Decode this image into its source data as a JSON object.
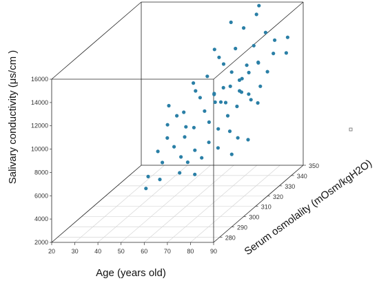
{
  "chart_data": {
    "type": "scatter3d",
    "x_label": "Age (years old)",
    "y_label": "Serum osmolality (mOsm/kgH2O)",
    "z_label": "Salivary conductivity (μs/cm )",
    "x_ticks": [
      "20",
      "30",
      "40",
      "50",
      "60",
      "70",
      "80",
      "90"
    ],
    "y_ticks": [
      "280",
      "290",
      "300",
      "310",
      "320",
      "330",
      "340",
      "350"
    ],
    "z_ticks": [
      "2000",
      "4000",
      "6000",
      "8000",
      "10000",
      "12000",
      "14000",
      "16000"
    ],
    "x_range": [
      20,
      90
    ],
    "y_range": [
      275,
      350
    ],
    "z_range": [
      2000,
      16000
    ],
    "grid": true,
    "point_color": "#2a7fa6",
    "points": [
      [
        53,
        290,
        5300
      ],
      [
        58,
        292,
        5900
      ],
      [
        55,
        288,
        6500
      ],
      [
        65,
        295,
        6200
      ],
      [
        70,
        298,
        5800
      ],
      [
        52,
        310,
        9000
      ],
      [
        55,
        312,
        9600
      ],
      [
        50,
        315,
        10200
      ],
      [
        58,
        312,
        9900
      ],
      [
        62,
        305,
        8400
      ],
      [
        60,
        318,
        11200
      ],
      [
        63,
        322,
        12100
      ],
      [
        67,
        320,
        10800
      ],
      [
        72,
        325,
        12200
      ],
      [
        75,
        318,
        11600
      ],
      [
        70,
        315,
        10500
      ],
      [
        78,
        322,
        11900
      ],
      [
        80,
        316,
        12300
      ],
      [
        82,
        320,
        12600
      ],
      [
        84,
        310,
        11800
      ],
      [
        85,
        322,
        13300
      ],
      [
        88,
        330,
        14500
      ],
      [
        90,
        325,
        13800
      ],
      [
        80,
        328,
        14200
      ],
      [
        72,
        335,
        15100
      ],
      [
        76,
        338,
        16000
      ],
      [
        66,
        336,
        15500
      ],
      [
        75,
        342,
        16400
      ],
      [
        70,
        332,
        13600
      ],
      [
        62,
        330,
        13700
      ],
      [
        68,
        326,
        12800
      ],
      [
        73,
        318,
        10200
      ],
      [
        77,
        312,
        9600
      ],
      [
        81,
        306,
        8800
      ],
      [
        86,
        303,
        8500
      ],
      [
        79,
        300,
        7900
      ],
      [
        74,
        302,
        8200
      ],
      [
        69,
        300,
        7700
      ],
      [
        64,
        298,
        7300
      ],
      [
        60,
        300,
        8000
      ],
      [
        57,
        296,
        7000
      ],
      [
        66,
        305,
        9200
      ],
      [
        71,
        308,
        9400
      ],
      [
        76,
        306,
        9000
      ],
      [
        81,
        312,
        10400
      ],
      [
        84,
        316,
        11100
      ],
      [
        88,
        318,
        11600
      ],
      [
        90,
        312,
        10700
      ],
      [
        92,
        300,
        8600
      ],
      [
        87,
        296,
        7700
      ],
      [
        67,
        312,
        10000
      ],
      [
        73,
        314,
        10600
      ],
      [
        79,
        318,
        11200
      ],
      [
        63,
        316,
        10800
      ],
      [
        58,
        320,
        11700
      ],
      [
        65,
        328,
        13200
      ],
      [
        82,
        334,
        14800
      ],
      [
        86,
        314,
        10800
      ],
      [
        74,
        296,
        7400
      ],
      [
        69,
        294,
        7200
      ],
      [
        55,
        304,
        8400
      ],
      [
        61,
        308,
        9000
      ],
      [
        53,
        300,
        7600
      ],
      [
        78,
        326,
        12700
      ],
      [
        83,
        326,
        12900
      ],
      [
        89,
        322,
        12500
      ],
      [
        91,
        335,
        14300
      ],
      [
        93,
        330,
        13400
      ],
      [
        71,
        320,
        11300
      ],
      [
        68,
        318,
        10900
      ]
    ]
  }
}
